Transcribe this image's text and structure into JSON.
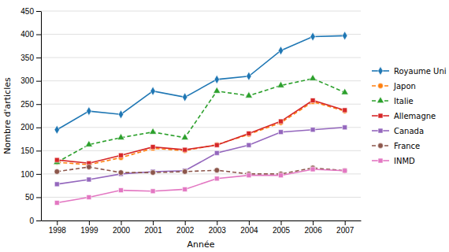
{
  "chart_data": {
    "type": "line",
    "xlabel": "Année",
    "ylabel": "Nombre d'articles",
    "x": [
      1998,
      1999,
      2000,
      2001,
      2002,
      2003,
      2004,
      2005,
      2006,
      2007
    ],
    "xlim": [
      1997.5,
      2007.5
    ],
    "xticks": [
      1998,
      1999,
      2000,
      2001,
      2002,
      2003,
      2004,
      2005,
      2006,
      2007
    ],
    "ylim": [
      0,
      450
    ],
    "yticks": [
      0,
      50,
      100,
      150,
      200,
      250,
      300,
      350,
      400,
      450
    ],
    "grid": true,
    "legend": "right",
    "series": [
      {
        "name": "Royaume Uni",
        "marker": "diamond",
        "line_style": "solid",
        "values": [
          195,
          235,
          228,
          278,
          265,
          303,
          310,
          365,
          395,
          397
        ]
      },
      {
        "name": "Japon",
        "marker": "circle",
        "line_style": "dashed",
        "values": [
          125,
          120,
          135,
          155,
          150,
          163,
          185,
          210,
          255,
          235
        ]
      },
      {
        "name": "Italie",
        "marker": "triangle",
        "line_style": "dashed",
        "values": [
          125,
          163,
          178,
          190,
          178,
          278,
          268,
          290,
          305,
          275
        ]
      },
      {
        "name": "Allemagne",
        "marker": "square",
        "line_style": "solid",
        "values": [
          130,
          123,
          140,
          158,
          152,
          162,
          187,
          213,
          258,
          237
        ]
      },
      {
        "name": "Canada",
        "marker": "square",
        "line_style": "solid",
        "values": [
          78,
          88,
          100,
          105,
          107,
          145,
          162,
          190,
          195,
          200
        ]
      },
      {
        "name": "France",
        "marker": "circle",
        "line_style": "dashed",
        "values": [
          105,
          115,
          103,
          103,
          105,
          108,
          100,
          100,
          113,
          107
        ]
      },
      {
        "name": "INMD",
        "marker": "square",
        "line_style": "solid",
        "values": [
          38,
          50,
          65,
          63,
          67,
          90,
          97,
          97,
          110,
          107
        ]
      }
    ]
  }
}
